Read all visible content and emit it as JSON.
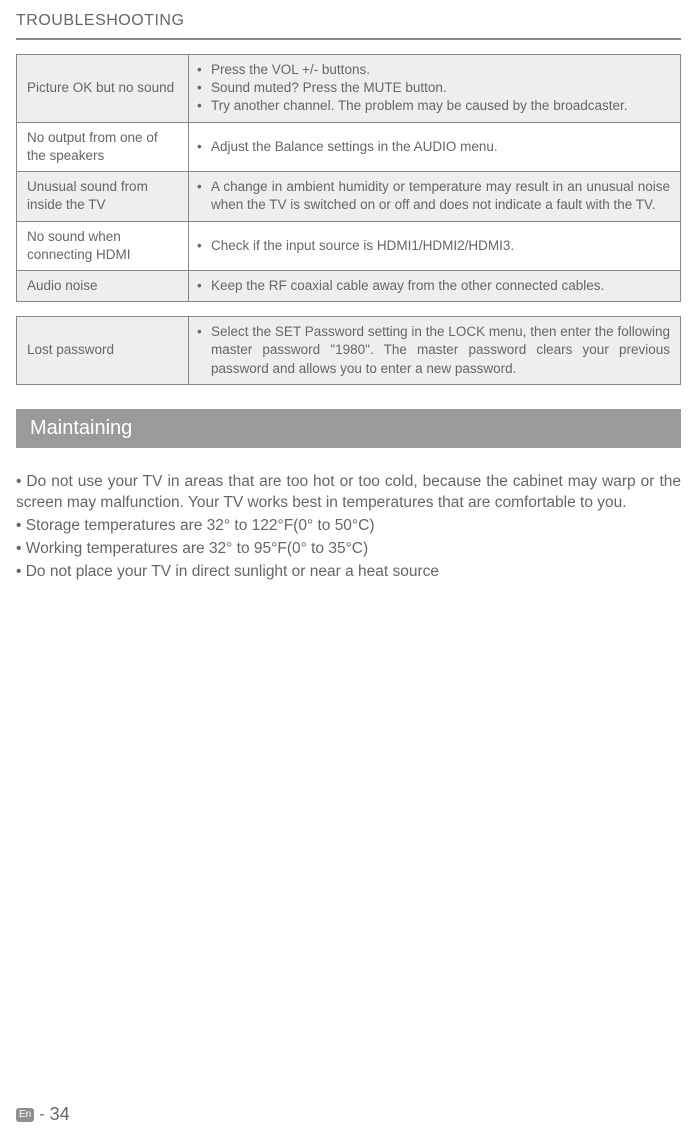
{
  "header": {
    "title": "TROUBLESHOOTING"
  },
  "table1": {
    "rows": [
      {
        "tint": true,
        "left": "Picture OK but no sound",
        "items": [
          "Press the VOL +/- buttons.",
          "Sound muted? Press the MUTE button.",
          "Try another channel. The problem may be caused by the broadcaster."
        ]
      },
      {
        "tint": false,
        "left": "No output from one of the speakers",
        "items": [
          "Adjust the Balance settings in the AUDIO menu."
        ]
      },
      {
        "tint": true,
        "left": "Unusual sound from inside the TV",
        "items": [
          "A change in ambient humidity or temperature may result in an unusual noise when the TV is switched on or off and does not indicate a fault with the TV."
        ]
      },
      {
        "tint": false,
        "left": "No sound when connecting HDMI",
        "items": [
          "Check if the input source is HDMI1/HDMI2/HDMI3."
        ]
      },
      {
        "tint": true,
        "left": "Audio noise",
        "items": [
          "Keep the RF coaxial cable away from the other connected cables."
        ]
      }
    ]
  },
  "table2": {
    "rows": [
      {
        "tint": true,
        "left": "Lost password",
        "items": [
          "Select the SET Password setting in the LOCK menu, then enter the following master password \"1980\". The master password clears your previous password and allows you to enter a new password."
        ]
      }
    ]
  },
  "section": {
    "title": "Maintaining"
  },
  "body": {
    "p1": "• Do not use your TV in areas that are too hot or too cold, because the cabinet may warp or the screen may malfunction. Your TV works best in temperatures that are comfortable to you.",
    "p2": "• Storage temperatures are 32° to 122°F(0° to 50°C)",
    "p3": "• Working temperatures are 32° to 95°F(0° to 35°C)",
    "p4": "• Do not place your TV in direct sunlight or near a heat source"
  },
  "footer": {
    "lang": "En",
    "dash": "-",
    "page": "34"
  },
  "colors": {
    "text": "#666666",
    "border": "#888888",
    "tint": "#eeeeee",
    "banner_bg": "#9a9a9a",
    "banner_text": "#ffffff",
    "badge_bg": "#8f8f8f"
  }
}
